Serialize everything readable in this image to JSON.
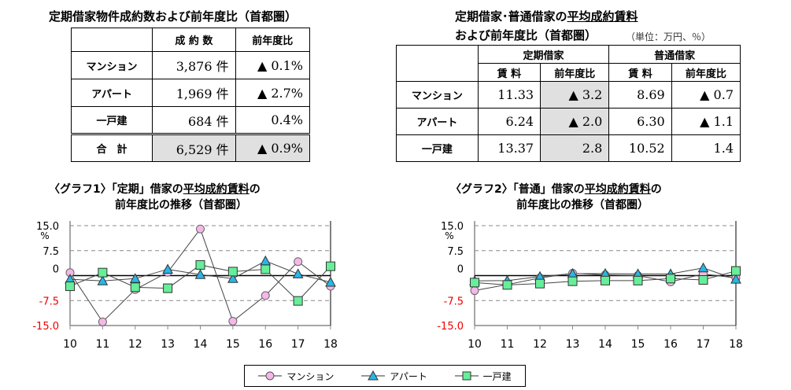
{
  "table1": {
    "title": "定期借家物件成約数および前年度比（首都圏）",
    "headers": [
      "",
      "成 約 数",
      "前年度比"
    ],
    "rows": [
      [
        "マンション",
        "3,876 件",
        "▲ 0.1%"
      ],
      [
        "アパート",
        "1,969 件",
        "▲ 2.7%"
      ],
      [
        "一戸建",
        "684 件",
        "0.4%"
      ],
      [
        "合　計",
        "6,529 件",
        "▲ 0.9%"
      ]
    ]
  },
  "table2": {
    "title1a": "定期借家･普通借家の",
    "title1b": "平均成約賃料",
    "title2": "および前年度比（首都圏）",
    "unit": "（単位：万円、％）",
    "groups": [
      "定期借家",
      "普通借家"
    ],
    "subheaders": [
      "賃 料",
      "前年度比",
      "賃 料",
      "前年度比"
    ],
    "rows": [
      [
        "マンション",
        "11.33",
        "▲ 3.2",
        "8.69",
        "▲ 0.7"
      ],
      [
        "アパート",
        "6.24",
        "▲ 2.0",
        "6.30",
        "▲ 1.1"
      ],
      [
        "一戸建",
        "13.37",
        "2.8",
        "10.52",
        "1.4"
      ]
    ]
  },
  "chart_titles": [
    {
      "a": "〈グラフ1〉「定期」借家の",
      "b": "平均成約賃料",
      "c": "の",
      "d": "前年度比の推移（首都圏）"
    },
    {
      "a": "〈グラフ2〉「普通」借家の",
      "b": "平均成約賃料",
      "c": "の",
      "d": "前年度比の推移（首都圏）"
    }
  ],
  "legend": [
    "マンション",
    "アパート",
    "一戸建"
  ],
  "chart_data": [
    {
      "type": "line",
      "x": [
        "10",
        "11",
        "12",
        "13",
        "14",
        "15",
        "16",
        "17",
        "18"
      ],
      "ylim": [
        -15,
        15
      ],
      "yticks": [
        "15.0",
        "7.5",
        "0",
        "-7.5",
        "-15.0"
      ],
      "yunit": "%",
      "grid": "dashed horizontal",
      "series": [
        {
          "name": "マンション",
          "marker": "circle",
          "color": "#f4b8e8",
          "values": [
            0.9,
            -13.9,
            -4.2,
            1.0,
            14.0,
            -13.7,
            -6.0,
            4.2,
            -3.2
          ]
        },
        {
          "name": "アパート",
          "marker": "triangle",
          "color": "#29b6e6",
          "values": [
            -1.1,
            -1.6,
            -0.9,
            1.9,
            0.3,
            -0.9,
            4.4,
            0.5,
            -2.0
          ]
        },
        {
          "name": "一戸建",
          "marker": "square",
          "color": "#66ee99",
          "values": [
            -3.2,
            0.9,
            -3.5,
            -3.8,
            3.2,
            1.2,
            1.9,
            -7.6,
            2.8
          ]
        }
      ]
    },
    {
      "type": "line",
      "x": [
        "10",
        "11",
        "12",
        "13",
        "14",
        "15",
        "16",
        "17",
        "18"
      ],
      "ylim": [
        -15,
        15
      ],
      "yticks": [
        "15.0",
        "7.5",
        "0",
        "-7.5",
        "-15.0"
      ],
      "yunit": "%",
      "grid": "dashed horizontal",
      "series": [
        {
          "name": "マンション",
          "marker": "circle",
          "color": "#f4b8e8",
          "values": [
            -4.5,
            -2.7,
            -0.7,
            0.7,
            0.2,
            0.0,
            -1.9,
            0.5,
            -0.7
          ]
        },
        {
          "name": "アパート",
          "marker": "triangle",
          "color": "#29b6e6",
          "values": [
            -1.6,
            -1.5,
            -0.3,
            0.6,
            0.6,
            0.5,
            0.5,
            2.3,
            -1.1
          ]
        },
        {
          "name": "一戸建",
          "marker": "square",
          "color": "#66ee99",
          "values": [
            -2.1,
            -2.8,
            -2.4,
            -1.7,
            -1.5,
            -1.5,
            -0.9,
            -1.3,
            1.4
          ]
        }
      ]
    }
  ]
}
